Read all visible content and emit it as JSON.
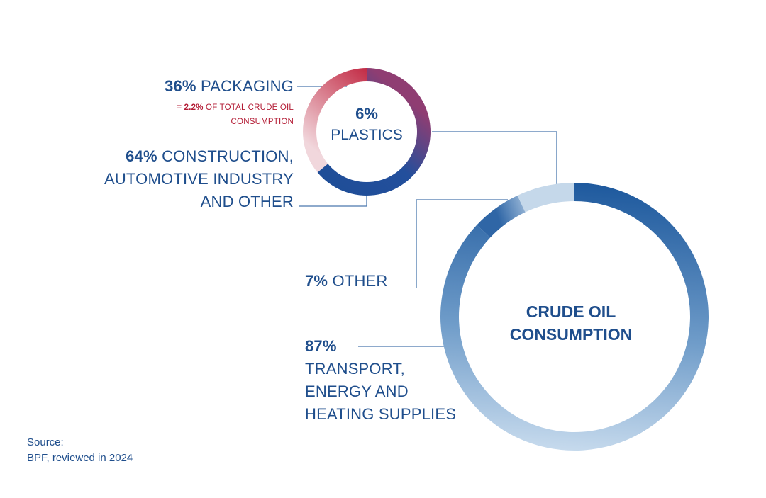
{
  "chart_data": [
    {
      "type": "pie",
      "center_value": "6%",
      "center_label": "PLASTICS",
      "slices": [
        {
          "label": "PACKAGING",
          "value": 36,
          "value_text": "36%",
          "note_value": "= 2.2%",
          "note_text": "OF TOTAL CRUDE OIL",
          "note_text2": "CONSUMPTION"
        },
        {
          "label_lines": [
            "CONSTRUCTION,",
            "AUTOMOTIVE INDUSTRY",
            "AND OTHER"
          ],
          "value": 64,
          "value_text": "64%"
        }
      ]
    },
    {
      "type": "pie",
      "center_label_lines": [
        "CRUDE OIL",
        "CONSUMPTION"
      ],
      "slices": [
        {
          "label_lines": [
            "TRANSPORT,",
            "ENERGY AND",
            "HEATING SUPPLIES"
          ],
          "value": 87,
          "value_text": "87%"
        },
        {
          "label": "PLASTICS",
          "value": 6
        },
        {
          "label": "OTHER",
          "value": 7,
          "value_text": "7%"
        }
      ]
    }
  ],
  "colors": {
    "dark_blue": "#1f5a9e",
    "light_blue": "#c5d8ea",
    "red": "#b31b34",
    "text_blue": "#1f4e8c",
    "connector": "#4a78ad"
  },
  "source": {
    "line1": "Source:",
    "line2": "BPF, reviewed in 2024"
  }
}
